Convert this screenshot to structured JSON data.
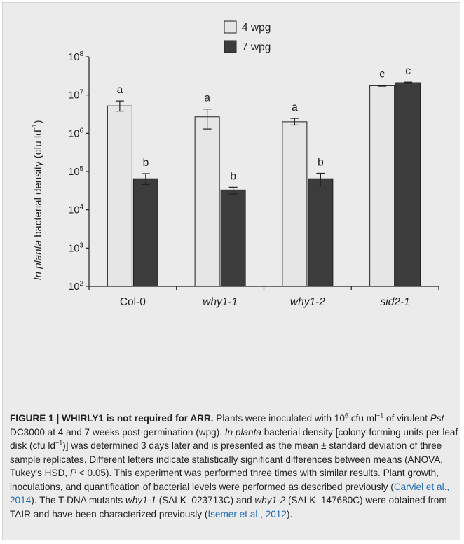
{
  "chart_data": {
    "type": "bar",
    "categories": [
      "Col-0",
      "why1-1",
      "why1-2",
      "sid2-1"
    ],
    "categories_italic": [
      false,
      true,
      true,
      true
    ],
    "series": [
      {
        "name": "4 wpg",
        "values": [
          5200000,
          2700000,
          2000000,
          17500000
        ],
        "error_low": [
          3800000,
          1300000,
          1650000,
          17000000
        ],
        "error_high": [
          7000000,
          4300000,
          2450000,
          18000000
        ],
        "letters": [
          "a",
          "a",
          "a",
          "c"
        ],
        "color": "#e6e6e6"
      },
      {
        "name": "7 wpg",
        "values": [
          65000,
          33000,
          65000,
          21000000
        ],
        "error_low": [
          46000,
          26000,
          42000,
          20200000
        ],
        "error_high": [
          88000,
          39000,
          90000,
          21800000
        ],
        "letters": [
          "b",
          "b",
          "b",
          "c"
        ],
        "color": "#3c3c3c"
      }
    ],
    "y_scale": "log",
    "ylim": [
      100,
      100000000
    ],
    "y_ticks": [
      {
        "base": "10",
        "exp": "2",
        "value": 100
      },
      {
        "base": "10",
        "exp": "3",
        "value": 1000
      },
      {
        "base": "10",
        "exp": "4",
        "value": 10000
      },
      {
        "base": "10",
        "exp": "5",
        "value": 100000
      },
      {
        "base": "10",
        "exp": "6",
        "value": 1000000
      },
      {
        "base": "10",
        "exp": "7",
        "value": 10000000
      },
      {
        "base": "10",
        "exp": "8",
        "value": 100000000
      }
    ],
    "ylabel_italic": "In planta",
    "ylabel_rest": " bacterial density (cfu ld",
    "ylabel_exp": "-1",
    "ylabel_close": ")",
    "legend_placement": "top-center",
    "grid": false
  },
  "caption": {
    "label": "FIGURE 1 | WHIRLY1 is not required for ARR.",
    "t1": " Plants were inoculated with 10",
    "s1": "6",
    "t2": " cfu ml",
    "s2": "−1",
    "t3": " of virulent ",
    "i1": "Pst",
    "t4": " DC3000 at 4 and 7 weeks post-germination (wpg). ",
    "i2": "In planta",
    "t5": " bacterial density [colony-forming units per leaf disk (cfu ld",
    "s3": "−1",
    "t6": ")] was determined 3 days later and is presented as the mean ± standard deviation of three sample replicates. Different letters indicate statistically significant differences between means (ANOVA, Tukey's HSD, ",
    "i3": "P",
    "t7": " < 0.05). This experiment was performed three times with similar results. Plant growth, inoculations, and quantification of bacterial levels were performed as described previously (",
    "c1": "Carviel et al., 2014",
    "t8": "). The T-DNA mutants ",
    "i4": "why1-1",
    "t9": " (SALK_023713C) and ",
    "i5": "why1-2",
    "t10": " (SALK_147680C) were obtained from TAIR and have been characterized previously (",
    "c2": "Isemer et al., 2012",
    "t11": ")."
  },
  "colors": {
    "panel_bg": "#ebebeb",
    "citation": "#1f6db5"
  }
}
